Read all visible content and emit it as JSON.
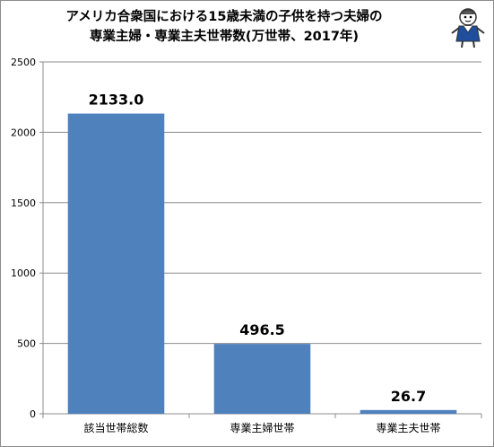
{
  "chart_data": {
    "type": "bar",
    "title_lines": [
      "アメリカ合衆国における15歳未満の子供を持つ夫婦の",
      "専業主婦・専業主夫世帯数(万世帯、2017年)"
    ],
    "categories": [
      "該当世帯総数",
      "専業主婦世帯",
      "専業主夫世帯"
    ],
    "values": [
      2133.0,
      496.5,
      26.7
    ],
    "data_labels": [
      "2133.0",
      "496.5",
      "26.7"
    ],
    "ylim": [
      0,
      2500
    ],
    "yticks": [
      "0",
      "500",
      "1000",
      "1500",
      "2000",
      "2500"
    ],
    "grid": true,
    "legend": "none",
    "bar_color": "#4f81bd"
  },
  "mascot": {
    "icon": "mascot-character-icon"
  }
}
